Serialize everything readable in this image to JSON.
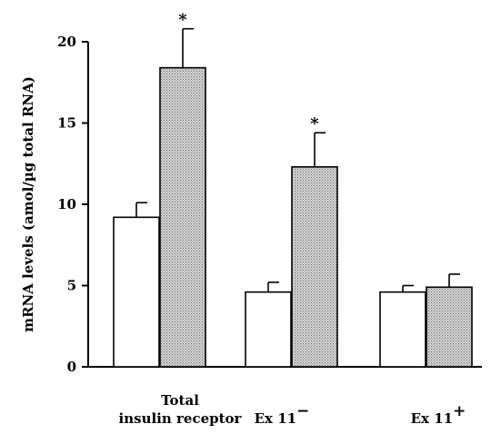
{
  "chart_data": {
    "type": "bar",
    "title": "",
    "xlabel": "",
    "ylabel": "mRNA levels (amol/µg total RNA)",
    "ylim": [
      0,
      20
    ],
    "yticks": [
      "0",
      "5",
      "10",
      "15",
      "20"
    ],
    "ytick_values": [
      0,
      5,
      10,
      15,
      20
    ],
    "grid": false,
    "legend": "none",
    "categories": [
      {
        "lines": [
          "Total",
          "insulin receptor"
        ]
      },
      {
        "base": "Ex 11",
        "sup": "−"
      },
      {
        "base": "Ex 11",
        "sup": "+"
      }
    ],
    "series": [
      {
        "fill": "#ffffff",
        "values": [
          9.2,
          4.6,
          4.6
        ],
        "errors": [
          0.9,
          0.6,
          0.4
        ]
      },
      {
        "fill": "#c8c8c8",
        "values": [
          18.4,
          12.3,
          4.9
        ],
        "errors": [
          2.4,
          2.1,
          0.8
        ]
      }
    ],
    "annotations": [
      {
        "category": 0,
        "series": 1,
        "text": "*"
      },
      {
        "category": 1,
        "series": 1,
        "text": "*"
      }
    ]
  }
}
